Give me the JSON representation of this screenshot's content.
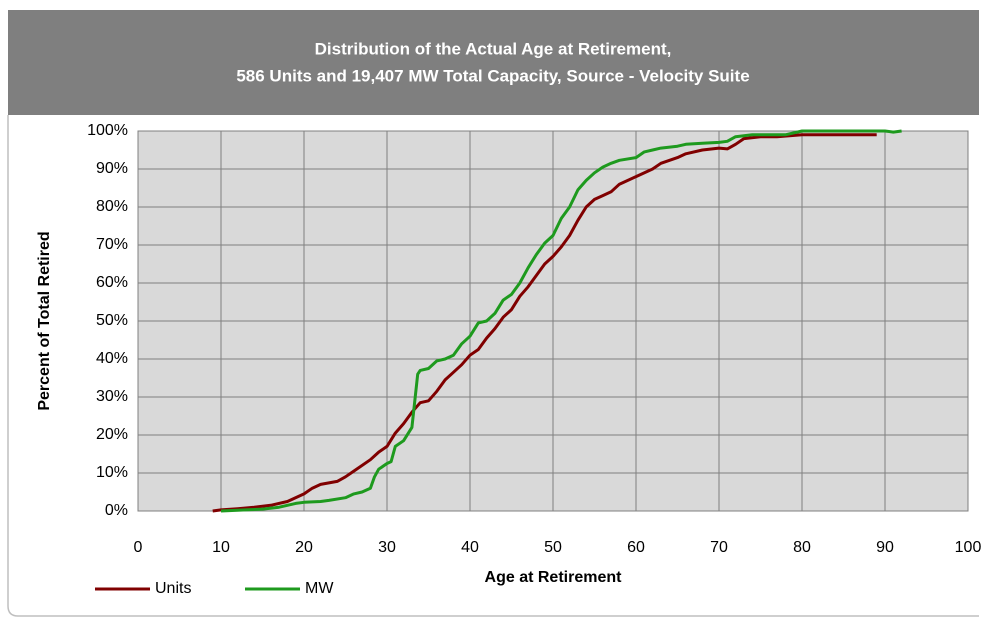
{
  "chart_data": {
    "type": "line",
    "title": [
      "Distribution of  the Actual Age at Retirement,",
      "586 Units and 19,407 MW Total Capacity,  Source - Velocity Suite"
    ],
    "xlabel": "Age at Retirement",
    "ylabel": "Percent of Total Retired",
    "xlim": [
      0,
      100
    ],
    "ylim": [
      0,
      100
    ],
    "xticks": [
      0,
      10,
      20,
      30,
      40,
      50,
      60,
      70,
      80,
      90,
      100
    ],
    "yticks": [
      {
        "value": 0,
        "label": "0%"
      },
      {
        "value": 10,
        "label": "10%"
      },
      {
        "value": 20,
        "label": "20%"
      },
      {
        "value": 30,
        "label": "30%"
      },
      {
        "value": 40,
        "label": "40%"
      },
      {
        "value": 50,
        "label": "50%"
      },
      {
        "value": 60,
        "label": "60%"
      },
      {
        "value": 70,
        "label": "70%"
      },
      {
        "value": 80,
        "label": "80%"
      },
      {
        "value": 90,
        "label": "90%"
      },
      {
        "value": 100,
        "label": "100%"
      }
    ],
    "grid": true,
    "legend": "bottom-left",
    "series": [
      {
        "name": "Units",
        "color": "#800000",
        "x": [
          9,
          10,
          12,
          14,
          16,
          18,
          20,
          21,
          22,
          24,
          25,
          26,
          28,
          29,
          30,
          31,
          32,
          33,
          34,
          35,
          36,
          37,
          38,
          39,
          40,
          41,
          42,
          43,
          44,
          45,
          46,
          47,
          48,
          49,
          50,
          51,
          52,
          53,
          54,
          55,
          56,
          57,
          58,
          60,
          62,
          63,
          65,
          66,
          68,
          70,
          71,
          72,
          73,
          75,
          77,
          80,
          85,
          89
        ],
        "values": [
          0,
          0.3,
          0.6,
          1,
          1.5,
          2.5,
          4.5,
          6,
          7,
          7.8,
          9,
          10.5,
          13.5,
          15.5,
          17,
          20.5,
          23,
          26,
          28.5,
          29,
          31.5,
          34.5,
          36.5,
          38.5,
          41,
          42.5,
          45.5,
          48,
          51,
          53,
          56.5,
          59,
          62,
          65,
          67,
          69.5,
          72.5,
          76.5,
          80,
          82,
          83,
          84,
          86,
          88,
          90,
          91.5,
          93,
          94,
          95,
          95.5,
          95.3,
          96.5,
          98,
          98.5,
          98.5,
          99,
          99,
          99
        ]
      },
      {
        "name": "MW",
        "color": "#1e9a1e",
        "x": [
          10,
          13,
          15,
          17,
          19,
          20,
          22,
          23,
          25,
          26,
          27,
          28,
          28.5,
          29,
          30,
          30.5,
          31,
          32,
          33,
          33.3,
          33.7,
          34,
          35,
          36,
          37,
          38,
          39,
          40,
          41,
          42,
          43,
          44,
          45,
          46,
          47,
          48,
          49,
          50,
          51,
          52,
          53,
          54,
          55,
          56,
          57,
          58,
          60,
          61,
          62,
          63,
          65,
          66,
          68,
          70,
          71,
          72,
          74,
          78,
          80,
          90,
          91,
          92
        ],
        "values": [
          0,
          0.3,
          0.5,
          1,
          2,
          2.3,
          2.5,
          2.8,
          3.5,
          4.5,
          5,
          6,
          9,
          11,
          12.5,
          13,
          17,
          18.5,
          22,
          28,
          36,
          37,
          37.5,
          39.5,
          40,
          41,
          44,
          46,
          49.5,
          50,
          52,
          55.5,
          57,
          60,
          64,
          67.5,
          70.5,
          72.5,
          77,
          80,
          84.5,
          87,
          89,
          90.5,
          91.5,
          92.3,
          93,
          94.5,
          95,
          95.5,
          96,
          96.5,
          96.8,
          97,
          97.3,
          98.5,
          99,
          99,
          100,
          100,
          99.7,
          100
        ]
      }
    ]
  }
}
